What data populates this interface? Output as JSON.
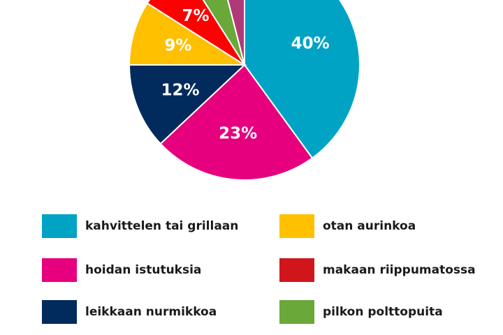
{
  "chart_data": {
    "type": "pie",
    "slices": [
      {
        "name": "kahvittelen tai grillaan",
        "value": 40,
        "label": "40%",
        "color": "#00a3c4"
      },
      {
        "name": "hoidan istutuksia",
        "value": 23,
        "label": "23%",
        "color": "#e6007e"
      },
      {
        "name": "leikkaan nurmikkoa",
        "value": 12,
        "label": "12%",
        "color": "#002b5c"
      },
      {
        "name": "otan aurinkoa",
        "value": 9,
        "label": "9%",
        "color": "#ffc000"
      },
      {
        "name": "makaan riippumatossa",
        "value": 7,
        "label": "7%",
        "color": "#ff0000"
      },
      {
        "name": "pilkon polttopuita",
        "value": 5,
        "label": "",
        "color": "#6aa83a"
      },
      {
        "name": "",
        "value": 4,
        "label": "",
        "color": "#b03a78"
      }
    ],
    "legend_placement": "bottom",
    "start_angle": "top, clockwise"
  },
  "legend": {
    "items": [
      {
        "label": "kahvittelen tai grillaan",
        "color": "#00a3c4"
      },
      {
        "label": "hoidan istutuksia",
        "color": "#e6007e"
      },
      {
        "label": "leikkaan nurmikkoa",
        "color": "#002b5c"
      },
      {
        "label": "otan aurinkoa",
        "color": "#ffc000"
      },
      {
        "label": "makaan riippumatossa",
        "color": "#d0161b"
      },
      {
        "label": "pilkon polttopuita",
        "color": "#6aa83a"
      }
    ]
  }
}
